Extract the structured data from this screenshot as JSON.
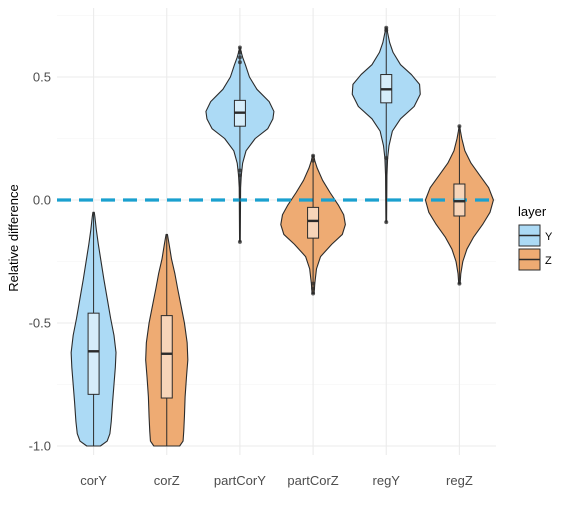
{
  "chart_data": {
    "type": "violin",
    "xlabel": "",
    "ylabel": "Relative difference",
    "ylim": [
      -1.0,
      0.75
    ],
    "yticks": [
      -1.0,
      -0.5,
      0.0,
      0.5
    ],
    "ytick_labels": [
      "-1.0",
      "-0.5",
      "0.0",
      "0.5"
    ],
    "categories": [
      "corY",
      "corZ",
      "partCorY",
      "partCorZ",
      "regY",
      "regZ"
    ],
    "reference_line": {
      "y": 0.0,
      "style": "dashed",
      "color": "#1aa0cf"
    },
    "legend": {
      "title": "layer",
      "position": "right",
      "entries": [
        {
          "label": "Y",
          "color": "#acdaf5"
        },
        {
          "label": "Z",
          "color": "#eeab73"
        }
      ]
    },
    "grid": true,
    "violins": [
      {
        "category": "corY",
        "layer": "Y",
        "min": -1.0,
        "max": -0.05,
        "q1": -0.79,
        "median": -0.615,
        "q3": -0.46,
        "profile": [
          [
            -1.0,
            0.2
          ],
          [
            -0.98,
            0.4
          ],
          [
            -0.95,
            0.48
          ],
          [
            -0.9,
            0.52
          ],
          [
            -0.82,
            0.56
          ],
          [
            -0.75,
            0.6
          ],
          [
            -0.68,
            0.64
          ],
          [
            -0.62,
            0.66
          ],
          [
            -0.55,
            0.6
          ],
          [
            -0.48,
            0.5
          ],
          [
            -0.4,
            0.4
          ],
          [
            -0.32,
            0.3
          ],
          [
            -0.25,
            0.22
          ],
          [
            -0.18,
            0.14
          ],
          [
            -0.12,
            0.08
          ],
          [
            -0.07,
            0.04
          ],
          [
            -0.05,
            0.02
          ]
        ],
        "outliers": []
      },
      {
        "category": "corZ",
        "layer": "Z",
        "min": -1.0,
        "max": -0.14,
        "q1": -0.805,
        "median": -0.625,
        "q3": -0.47,
        "profile": [
          [
            -1.0,
            0.38
          ],
          [
            -0.98,
            0.48
          ],
          [
            -0.94,
            0.5
          ],
          [
            -0.88,
            0.52
          ],
          [
            -0.8,
            0.54
          ],
          [
            -0.72,
            0.58
          ],
          [
            -0.65,
            0.62
          ],
          [
            -0.58,
            0.6
          ],
          [
            -0.5,
            0.52
          ],
          [
            -0.43,
            0.42
          ],
          [
            -0.36,
            0.32
          ],
          [
            -0.3,
            0.24
          ],
          [
            -0.24,
            0.14
          ],
          [
            -0.18,
            0.07
          ],
          [
            -0.14,
            0.02
          ]
        ],
        "outliers": []
      },
      {
        "category": "partCorY",
        "layer": "Y",
        "min": -0.17,
        "max": 0.62,
        "q1": 0.3,
        "median": 0.355,
        "q3": 0.405,
        "profile": [
          [
            -0.17,
            0.01
          ],
          [
            0.05,
            0.02
          ],
          [
            0.1,
            0.04
          ],
          [
            0.15,
            0.08
          ],
          [
            0.2,
            0.18
          ],
          [
            0.25,
            0.45
          ],
          [
            0.29,
            0.82
          ],
          [
            0.33,
            0.97
          ],
          [
            0.36,
            1.0
          ],
          [
            0.4,
            0.86
          ],
          [
            0.45,
            0.5
          ],
          [
            0.5,
            0.28
          ],
          [
            0.55,
            0.16
          ],
          [
            0.58,
            0.08
          ],
          [
            0.6,
            0.04
          ],
          [
            0.62,
            0.01
          ]
        ],
        "outliers": [
          -0.17,
          0.1,
          0.12,
          0.56,
          0.58,
          0.6,
          0.62
        ]
      },
      {
        "category": "partCorZ",
        "layer": "Z",
        "min": -0.38,
        "max": 0.18,
        "q1": -0.155,
        "median": -0.085,
        "q3": -0.03,
        "profile": [
          [
            -0.38,
            0.03
          ],
          [
            -0.34,
            0.05
          ],
          [
            -0.28,
            0.1
          ],
          [
            -0.23,
            0.22
          ],
          [
            -0.18,
            0.55
          ],
          [
            -0.14,
            0.86
          ],
          [
            -0.1,
            0.95
          ],
          [
            -0.06,
            0.9
          ],
          [
            -0.02,
            0.74
          ],
          [
            0.03,
            0.5
          ],
          [
            0.08,
            0.28
          ],
          [
            0.13,
            0.12
          ],
          [
            0.16,
            0.05
          ],
          [
            0.18,
            0.02
          ]
        ],
        "outliers": [
          -0.38,
          -0.36,
          -0.34,
          0.16,
          0.18
        ]
      },
      {
        "category": "regY",
        "layer": "Y",
        "min": -0.09,
        "max": 0.7,
        "q1": 0.395,
        "median": 0.45,
        "q3": 0.51,
        "profile": [
          [
            -0.09,
            0.01
          ],
          [
            0.1,
            0.02
          ],
          [
            0.17,
            0.04
          ],
          [
            0.22,
            0.08
          ],
          [
            0.28,
            0.18
          ],
          [
            0.33,
            0.42
          ],
          [
            0.38,
            0.82
          ],
          [
            0.43,
            1.0
          ],
          [
            0.47,
            0.98
          ],
          [
            0.51,
            0.74
          ],
          [
            0.55,
            0.42
          ],
          [
            0.6,
            0.2
          ],
          [
            0.64,
            0.1
          ],
          [
            0.68,
            0.04
          ],
          [
            0.7,
            0.02
          ]
        ],
        "outliers": [
          -0.09,
          0.17,
          0.69,
          0.7
        ]
      },
      {
        "category": "regZ",
        "layer": "Z",
        "min": -0.34,
        "max": 0.3,
        "q1": -0.065,
        "median": -0.005,
        "q3": 0.065,
        "profile": [
          [
            -0.34,
            0.02
          ],
          [
            -0.3,
            0.04
          ],
          [
            -0.25,
            0.1
          ],
          [
            -0.2,
            0.22
          ],
          [
            -0.15,
            0.42
          ],
          [
            -0.1,
            0.68
          ],
          [
            -0.05,
            0.9
          ],
          [
            0.0,
            1.0
          ],
          [
            0.05,
            0.86
          ],
          [
            0.1,
            0.6
          ],
          [
            0.15,
            0.34
          ],
          [
            0.2,
            0.16
          ],
          [
            0.25,
            0.07
          ],
          [
            0.28,
            0.03
          ],
          [
            0.3,
            0.01
          ]
        ],
        "outliers": [
          -0.34,
          0.3
        ]
      }
    ]
  }
}
